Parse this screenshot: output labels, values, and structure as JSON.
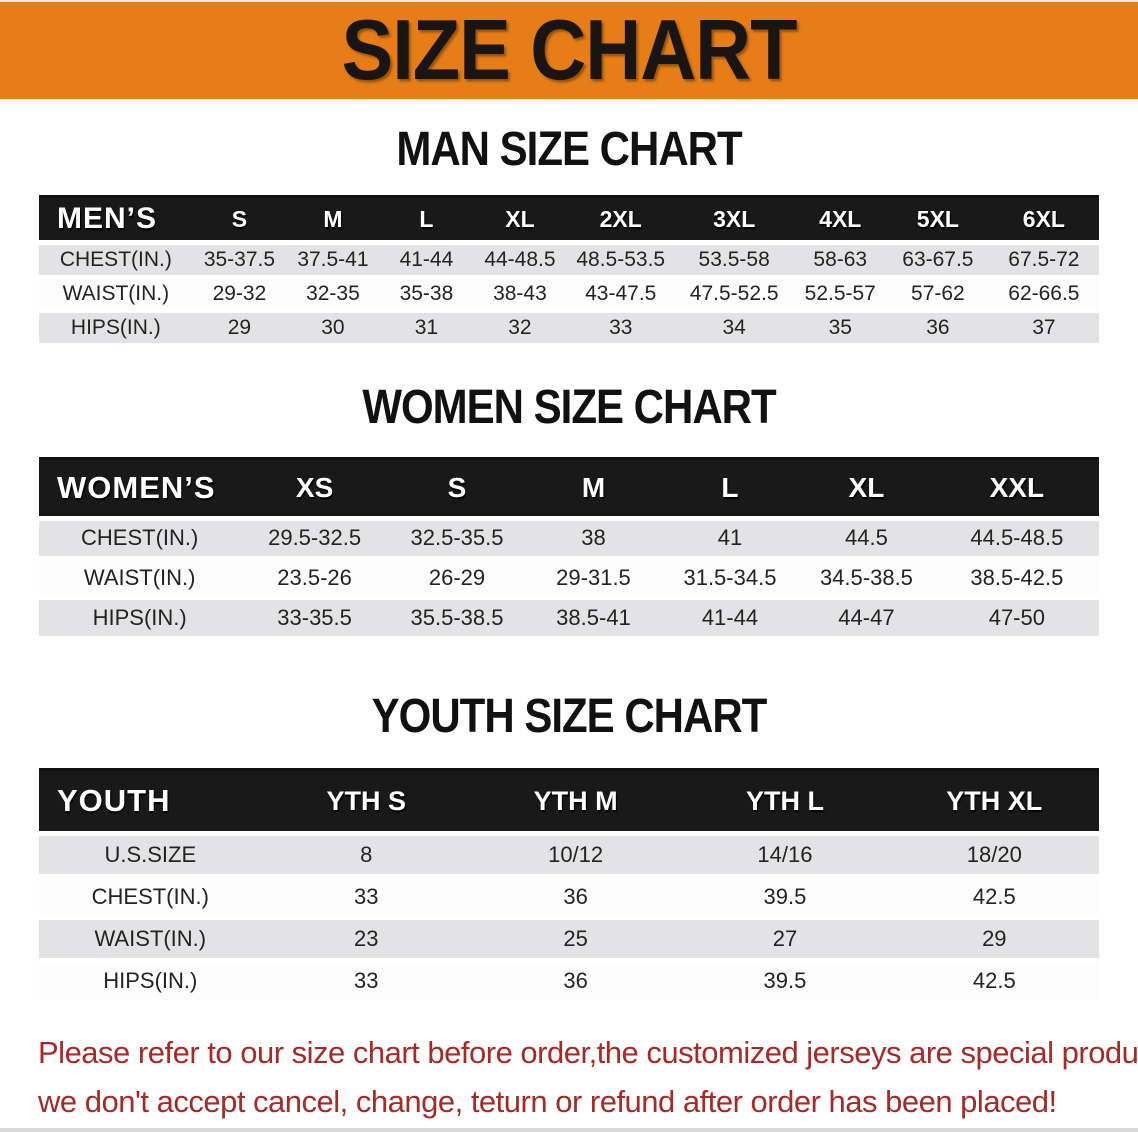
{
  "page": {
    "title": "SIZE CHART",
    "man_heading": "MAN SIZE CHART",
    "women_heading": "WOMEN SIZE CHART",
    "youth_heading": "YOUTH SIZE CHART",
    "footer_line1": "Please refer to our size chart before order,the customized jerseys are special products,",
    "footer_line2": "we don't accept cancel, change, teturn or refund after order has been placed!"
  },
  "colors": {
    "banner_orange": "#e67d17",
    "table_header_black": "#191919",
    "row_shaded_gray": "#e3e3e5",
    "disclaimer_red": "#a62b26"
  },
  "chart_data": [
    {
      "type": "table",
      "title": "MAN SIZE CHART",
      "label": "MEN’S",
      "columns": [
        "S",
        "M",
        "L",
        "XL",
        "2XL",
        "3XL",
        "4XL",
        "5XL",
        "6XL"
      ],
      "rows": [
        {
          "label": "CHEST(IN.)",
          "values": [
            "35-37.5",
            "37.5-41",
            "41-44",
            "44-48.5",
            "48.5-53.5",
            "53.5-58",
            "58-63",
            "63-67.5",
            "67.5-72"
          ]
        },
        {
          "label": "WAIST(IN.)",
          "values": [
            "29-32",
            "32-35",
            "35-38",
            "38-43",
            "43-47.5",
            "47.5-52.5",
            "52.5-57",
            "57-62",
            "62-66.5"
          ]
        },
        {
          "label": "HIPS(IN.)",
          "values": [
            "29",
            "30",
            "31",
            "32",
            "33",
            "34",
            "35",
            "36",
            "37"
          ]
        }
      ]
    },
    {
      "type": "table",
      "title": "WOMEN SIZE CHART",
      "label": "WOMEN’S",
      "columns": [
        "XS",
        "S",
        "M",
        "L",
        "XL",
        "XXL"
      ],
      "rows": [
        {
          "label": "CHEST(IN.)",
          "values": [
            "29.5-32.5",
            "32.5-35.5",
            "38",
            "41",
            "44.5",
            "44.5-48.5"
          ]
        },
        {
          "label": "WAIST(IN.)",
          "values": [
            "23.5-26",
            "26-29",
            "29-31.5",
            "31.5-34.5",
            "34.5-38.5",
            "38.5-42.5"
          ]
        },
        {
          "label": "HIPS(IN.)",
          "values": [
            "33-35.5",
            "35.5-38.5",
            "38.5-41",
            "41-44",
            "44-47",
            "47-50"
          ]
        }
      ]
    },
    {
      "type": "table",
      "title": "YOUTH SIZE CHART",
      "label": "YOUTH",
      "columns": [
        "YTH S",
        "YTH M",
        "YTH L",
        "YTH XL"
      ],
      "rows": [
        {
          "label": "U.S.SIZE",
          "values": [
            "8",
            "10/12",
            "14/16",
            "18/20"
          ]
        },
        {
          "label": "CHEST(IN.)",
          "values": [
            "33",
            "36",
            "39.5",
            "42.5"
          ]
        },
        {
          "label": "WAIST(IN.)",
          "values": [
            "23",
            "25",
            "27",
            "29"
          ]
        },
        {
          "label": "HIPS(IN.)",
          "values": [
            "33",
            "36",
            "39.5",
            "42.5"
          ]
        }
      ]
    }
  ]
}
